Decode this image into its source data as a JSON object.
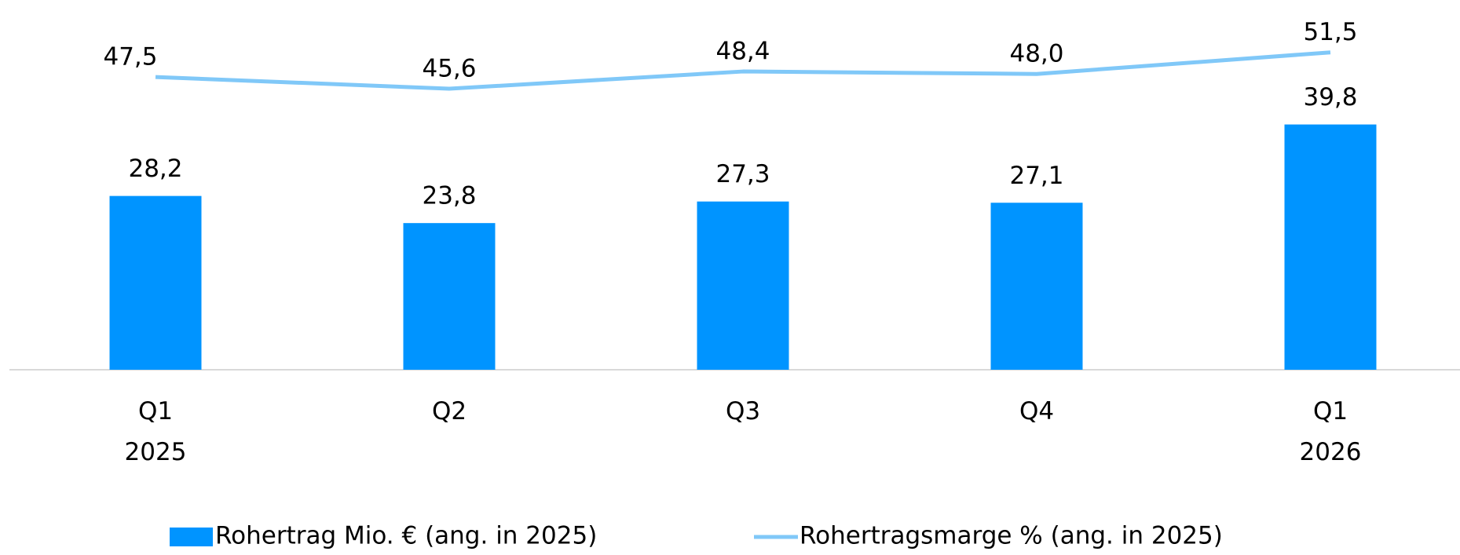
{
  "chart_data": {
    "type": "bar",
    "categories": [
      "Q1 2025",
      "Q2",
      "Q3",
      "Q4",
      "Q1 2026"
    ],
    "ylim": [
      0,
      60
    ],
    "series": [
      {
        "name": "Rohertrag Mio. € (ang. in 2025)",
        "type": "bar",
        "color": "#0094ff",
        "values": [
          28.2,
          23.8,
          27.3,
          27.1,
          39.8
        ],
        "value_labels": [
          "28,2",
          "23,8",
          "27,3",
          "27,1",
          "39,8"
        ]
      },
      {
        "name": "Rohertragsmarge % (ang. in 2025)",
        "type": "line",
        "color": "#80c8f8",
        "values": [
          47.5,
          45.6,
          48.4,
          48.0,
          51.5
        ],
        "value_labels": [
          "47,5",
          "45,6",
          "48,4",
          "48,0",
          "51,5"
        ]
      }
    ],
    "legend": "bottom"
  }
}
